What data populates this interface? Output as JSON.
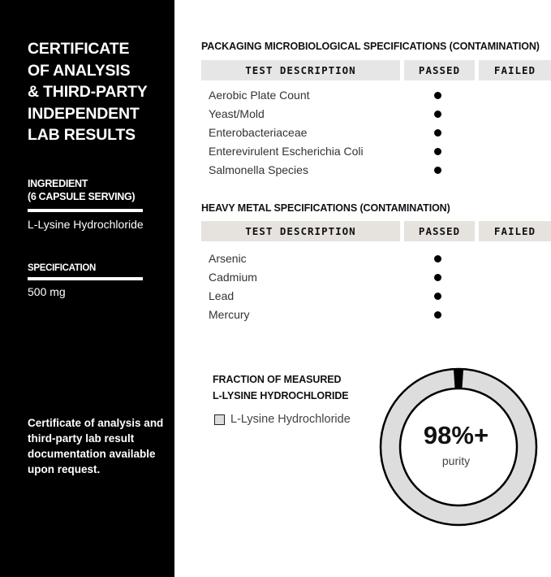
{
  "sidebar": {
    "title_lines": [
      "CERTIFICATE",
      "OF ANALYSIS",
      "& THIRD-PARTY",
      "INDEPENDENT",
      "LAB RESULTS"
    ],
    "ingredient_label_lines": [
      "INGREDIENT",
      "(6 CAPSULE SERVING)"
    ],
    "ingredient_value": "L-Lysine Hydrochloride",
    "specification_label": "SPECIFICATION",
    "specification_value": "500 mg",
    "note": "Certificate of analysis and third-party lab result documentation available upon request."
  },
  "microbiological": {
    "title": "PACKAGING MICROBIOLOGICAL SPECIFICATIONS (CONTAMINATION)",
    "headers": [
      "TEST DESCRIPTION",
      "PASSED",
      "FAILED"
    ],
    "rows": [
      {
        "test": "Aerobic Plate Count",
        "result": "passed"
      },
      {
        "test": "Yeast/Mold",
        "result": "passed"
      },
      {
        "test": "Enterobacteriaceae",
        "result": "passed"
      },
      {
        "test": "Enterevirulent Escherichia Coli",
        "result": "passed"
      },
      {
        "test": "Salmonella Species",
        "result": "passed"
      }
    ]
  },
  "heavy_metal": {
    "title": "HEAVY METAL SPECIFICATIONS (CONTAMINATION)",
    "headers": [
      "TEST DESCRIPTION",
      "PASSED",
      "FAILED"
    ],
    "rows": [
      {
        "test": "Arsenic",
        "result": "passed"
      },
      {
        "test": "Cadmium",
        "result": "passed"
      },
      {
        "test": "Lead",
        "result": "passed"
      },
      {
        "test": "Mercury",
        "result": "passed"
      }
    ]
  },
  "fraction": {
    "title_lines": [
      "FRACTION OF MEASURED",
      "L-LYSINE HYDROCHLORIDE"
    ],
    "legend": "L-Lysine Hydrochloride",
    "value_label": "98%+",
    "sub_label": "purity",
    "purity_percent": 98,
    "colors": {
      "main": "#dddddd",
      "remainder": "#000000"
    }
  }
}
